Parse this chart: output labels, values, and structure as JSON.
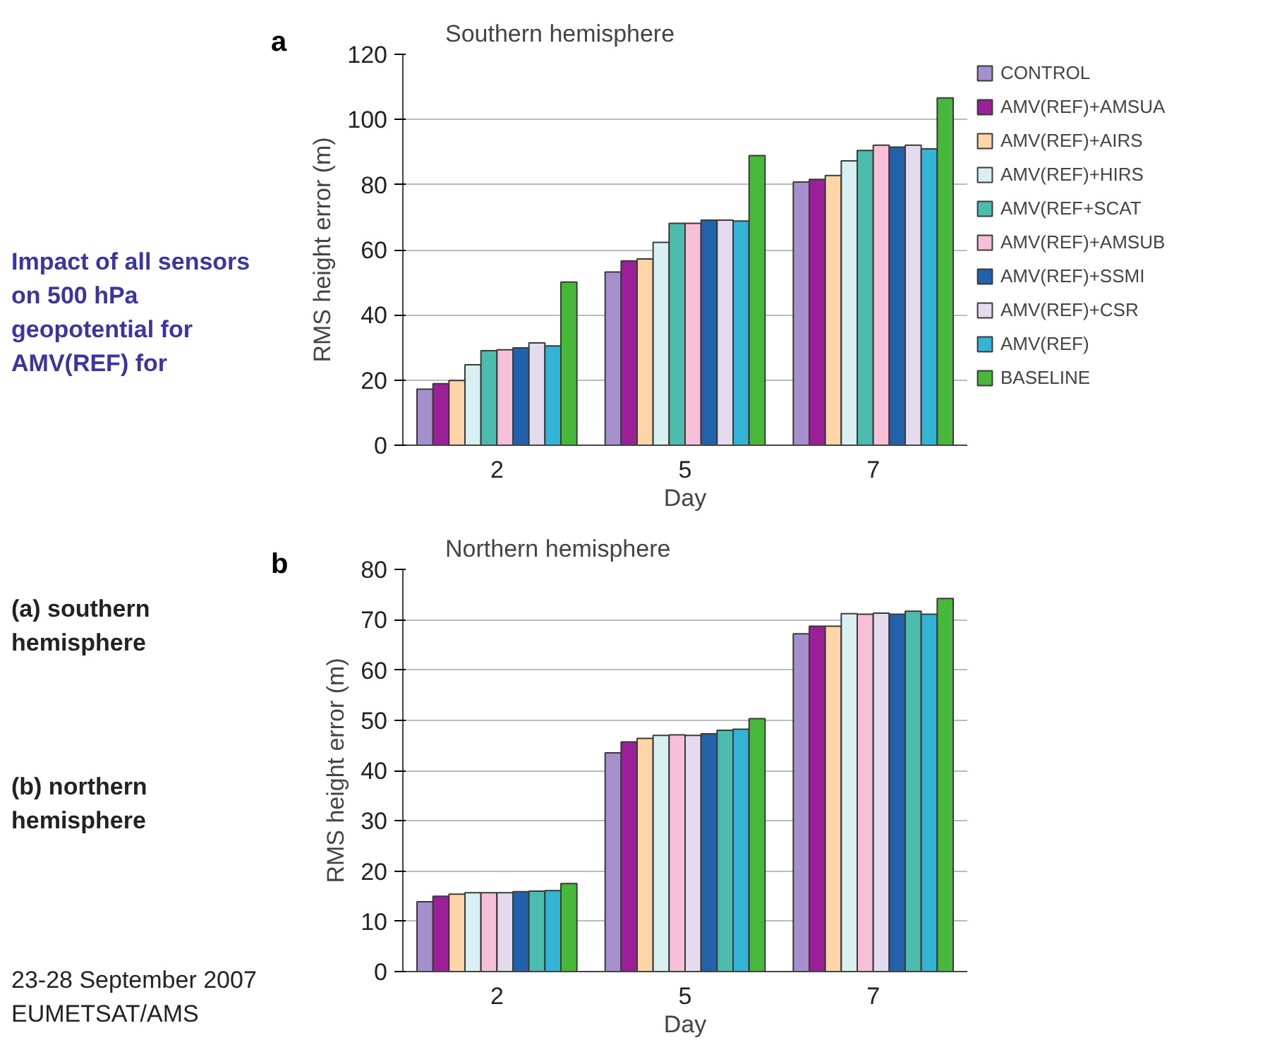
{
  "chart_data": [
    {
      "type": "bar",
      "title": "Southern hemisphere",
      "xlabel": "Day",
      "ylabel": "RMS height error (m)",
      "categories": [
        "2",
        "5",
        "7"
      ],
      "ylim": [
        0,
        120
      ],
      "yticks": [
        0,
        20,
        40,
        60,
        80,
        100,
        120
      ],
      "grid": "y",
      "legend": "right",
      "annotations": [
        "a",
        "Impact of all sensors on 500 hPa geopotential for AMV(REF) for",
        "23-28 September 2007",
        "EUMETSAT/AMS"
      ],
      "series": [
        {
          "name": "CONTROL",
          "color": "#a58fcc",
          "values": [
            17.2,
            53.2,
            80.8
          ]
        },
        {
          "name": "AMV(REF)+AMSUA",
          "color": "#9b1f96",
          "values": [
            18.9,
            56.6,
            81.6
          ]
        },
        {
          "name": "AMV(REF)+AIRS",
          "color": "#fdd5a8",
          "values": [
            19.9,
            57.2,
            82.8
          ]
        },
        {
          "name": "AMV(REF)+HIRS",
          "color": "#d8f0f2",
          "values": [
            24.7,
            62.3,
            87.3
          ]
        },
        {
          "name": "AMV(REF+SCAT",
          "color": "#4cbcae",
          "values": [
            29.0,
            68.1,
            90.5
          ]
        },
        {
          "name": "AMV(REF)+AMSUB",
          "color": "#f7bfd8",
          "values": [
            29.3,
            68.1,
            92.1
          ]
        },
        {
          "name": "AMV(REF)+SSMI",
          "color": "#2262aa",
          "values": [
            29.9,
            69.1,
            91.5
          ]
        },
        {
          "name": "AMV(REF)+CSR",
          "color": "#e4dcee",
          "values": [
            31.4,
            69.1,
            92.1
          ]
        },
        {
          "name": "AMV(REF)",
          "color": "#33b3d6",
          "values": [
            30.5,
            68.8,
            91.0
          ]
        },
        {
          "name": "BASELINE",
          "color": "#48b83a",
          "values": [
            50.1,
            88.9,
            106.6
          ]
        }
      ]
    },
    {
      "type": "bar",
      "title": "Northern hemisphere",
      "xlabel": "Day",
      "ylabel": "RMS height error (m)",
      "categories": [
        "2",
        "5",
        "7"
      ],
      "ylim": [
        0,
        80
      ],
      "yticks": [
        0,
        10,
        20,
        30,
        40,
        50,
        60,
        70,
        80
      ],
      "grid": "y",
      "annotations": [
        "b",
        "(a) southern hemisphere",
        "(b) northern hemisphere"
      ],
      "series": [
        {
          "color": "#a58fcc",
          "values": [
            13.9,
            43.5,
            67.2
          ]
        },
        {
          "color": "#9b1f96",
          "values": [
            15.0,
            45.7,
            68.7
          ]
        },
        {
          "color": "#fdd5a8",
          "values": [
            15.4,
            46.4,
            68.7
          ]
        },
        {
          "color": "#d8f0f2",
          "values": [
            15.7,
            47.0,
            71.2
          ]
        },
        {
          "color": "#f7bfd8",
          "values": [
            15.7,
            47.1,
            71.1
          ]
        },
        {
          "color": "#e4dcee",
          "values": [
            15.7,
            47.0,
            71.3
          ]
        },
        {
          "color": "#2262aa",
          "values": [
            15.9,
            47.3,
            71.1
          ]
        },
        {
          "color": "#4cbcae",
          "values": [
            16.0,
            48.0,
            71.7
          ]
        },
        {
          "color": "#33b3d6",
          "values": [
            16.1,
            48.2,
            71.1
          ]
        },
        {
          "color": "#48b83a",
          "values": [
            17.5,
            50.3,
            74.2
          ]
        }
      ]
    }
  ]
}
